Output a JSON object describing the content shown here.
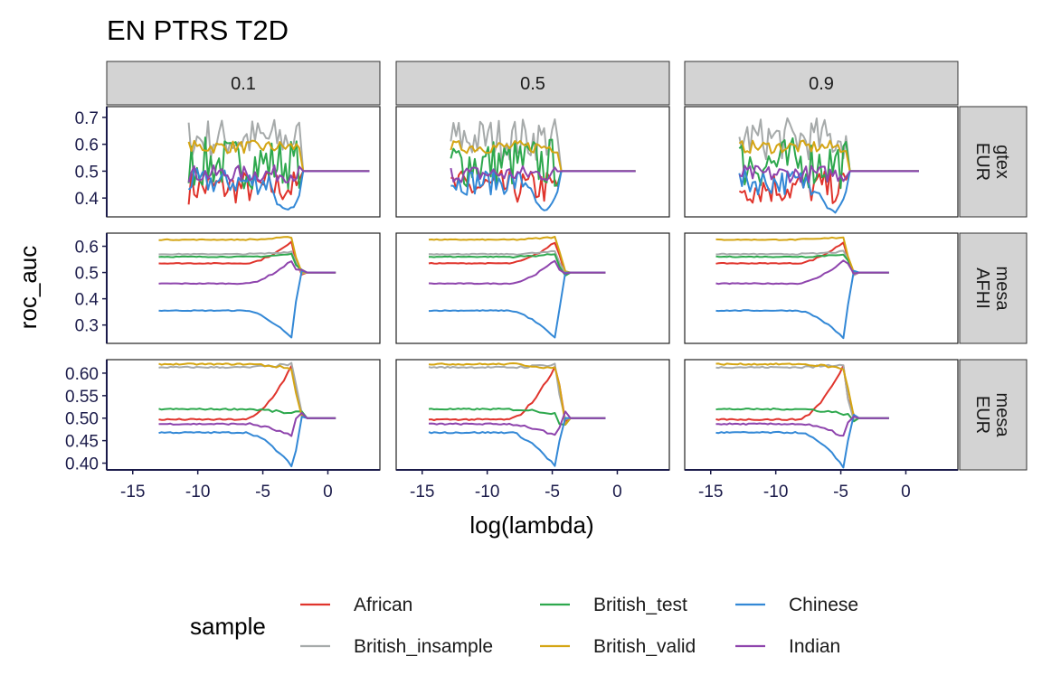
{
  "chart_data": {
    "type": "line",
    "title": "EN PTRS T2D",
    "xlabel": "log(lambda)",
    "ylabel": "roc_auc",
    "column_facets": [
      "0.1",
      "0.5",
      "0.9"
    ],
    "row_facets": [
      "gtex\nEUR",
      "mesa\nAFHI",
      "mesa\nEUR"
    ],
    "xlim": [
      -17,
      4
    ],
    "x_ticks": [
      -15,
      -10,
      -5,
      0
    ],
    "x_tick_labels": [
      "-15",
      "-10",
      "-5",
      "0"
    ],
    "rows": [
      {
        "ylim": [
          0.33,
          0.74
        ],
        "y_ticks": [
          0.4,
          0.5,
          0.6,
          0.7
        ],
        "y_tick_labels": [
          "0.4",
          "0.5",
          "0.6",
          "0.7"
        ]
      },
      {
        "ylim": [
          0.23,
          0.65
        ],
        "y_ticks": [
          0.3,
          0.4,
          0.5,
          0.6
        ],
        "y_tick_labels": [
          "0.3",
          "0.4",
          "0.5",
          "0.6"
        ]
      },
      {
        "ylim": [
          0.385,
          0.63
        ],
        "y_ticks": [
          0.4,
          0.45,
          0.5,
          0.55,
          0.6
        ],
        "y_tick_labels": [
          "0.40",
          "0.45",
          "0.50",
          "0.55",
          "0.60"
        ]
      }
    ],
    "grid": false,
    "legend": {
      "title": "sample",
      "placement": "bottom",
      "entries": [
        {
          "name": "African",
          "color": "#e0342c"
        },
        {
          "name": "British_insample",
          "color": "#a6aaaa"
        },
        {
          "name": "British_test",
          "color": "#2da84d"
        },
        {
          "name": "British_valid",
          "color": "#d4a514"
        },
        {
          "name": "Chinese",
          "color": "#3388d6"
        },
        {
          "name": "Indian",
          "color": "#8e44ad"
        }
      ]
    },
    "series_spec": {
      "gtex_start_x": [
        -10.7,
        -12.8,
        -12.8
      ],
      "gtex_end_x": [
        -2.2,
        -4.6,
        -4.6
      ],
      "gtex_flat_end_x": [
        3.2,
        1.4,
        1.0
      ],
      "mesa_start_x": [
        -13,
        -14.5,
        -14.6
      ],
      "mesa_drop_x": [
        -2.8,
        -4.8,
        -4.8
      ],
      "mesa_afhi_flat_end_x": [
        0.6,
        -0.9,
        -1.3
      ],
      "mesa_eur_flat_end_x": [
        0.6,
        -0.9,
        -1.3
      ]
    },
    "series": {
      "gtex": {
        "African": {
          "mean": 0.44,
          "amp": 0.04,
          "end": 0.5
        },
        "British_insample": {
          "mean": 0.62,
          "amp": 0.05,
          "end": 0.5
        },
        "British_test": {
          "mean": 0.53,
          "amp": 0.06,
          "end": 0.5
        },
        "British_valid": {
          "mean": 0.59,
          "amp": 0.015,
          "end": 0.5
        },
        "Chinese": {
          "mean": 0.46,
          "amp": 0.03,
          "end": 0.5,
          "dip": 0.35
        },
        "Indian": {
          "mean": 0.49,
          "amp": 0.02,
          "end": 0.5
        }
      },
      "mesa_afhi": {
        "African": {
          "base": 0.535,
          "peak": 0.615,
          "end": 0.5
        },
        "British_insample": {
          "base": 0.57,
          "peak": 0.58,
          "end": 0.5
        },
        "British_test": {
          "base": 0.56,
          "peak": 0.57,
          "end": 0.5
        },
        "British_valid": {
          "base": 0.625,
          "peak": 0.635,
          "end": 0.5
        },
        "Chinese": {
          "base": 0.355,
          "peak": 0.25,
          "end": 0.5
        },
        "Indian": {
          "base": 0.458,
          "peak": 0.545,
          "end": 0.5
        }
      },
      "mesa_eur": {
        "African": {
          "base": 0.497,
          "peak": 0.615,
          "end": 0.5
        },
        "British_insample": {
          "base": 0.613,
          "peak": 0.62,
          "end": 0.5
        },
        "British_test": {
          "base": 0.52,
          "peak": 0.51,
          "end": 0.5
        },
        "British_valid": {
          "base": 0.62,
          "peak": 0.61,
          "end": 0.5
        },
        "Chinese": {
          "base": 0.468,
          "peak": 0.393,
          "end": 0.5
        },
        "Indian": {
          "base": 0.487,
          "peak": 0.46,
          "end": 0.5
        }
      }
    }
  }
}
